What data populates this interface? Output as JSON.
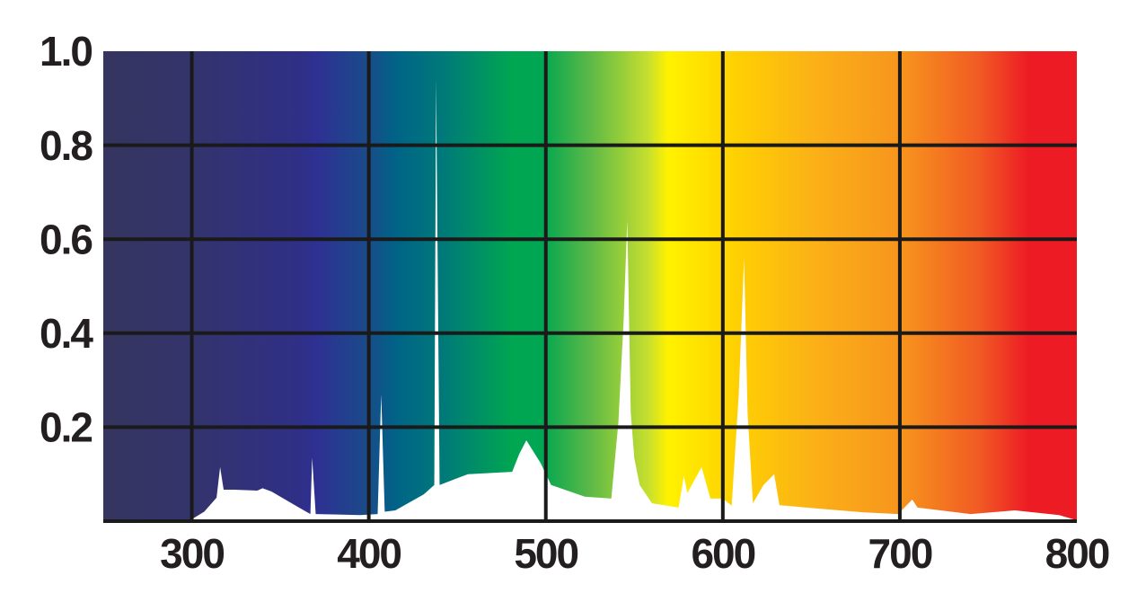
{
  "chart_data": {
    "type": "area",
    "color": "#ffffff",
    "grid": true,
    "xlim": [
      250,
      800
    ],
    "ylim": [
      0,
      1
    ],
    "xticks": [
      300,
      400,
      500,
      600,
      700,
      800
    ],
    "yticks": [
      0.2,
      0.4,
      0.6,
      0.8,
      {
        "value": 1,
        "label": "1.0"
      }
    ],
    "x": [
      300,
      307,
      314,
      316,
      318,
      324,
      337,
      340,
      345,
      360,
      367,
      368,
      370,
      395,
      405,
      407,
      409,
      415,
      431,
      437,
      438,
      440,
      456,
      481,
      485,
      489,
      497,
      503,
      522,
      537,
      541,
      544,
      546,
      548,
      550,
      553,
      560,
      575,
      578,
      580,
      588,
      593,
      600,
      605,
      609,
      612,
      614,
      617,
      623,
      629,
      632,
      653,
      679,
      699,
      707,
      710,
      740,
      765,
      790,
      798
    ],
    "values": [
      0.004,
      0.02,
      0.05,
      0.115,
      0.067,
      0.067,
      0.065,
      0.07,
      0.063,
      0.03,
      0.015,
      0.135,
      0.015,
      0.013,
      0.015,
      0.27,
      0.02,
      0.023,
      0.057,
      0.077,
      0.94,
      0.077,
      0.1,
      0.105,
      0.143,
      0.172,
      0.124,
      0.077,
      0.052,
      0.048,
      0.21,
      0.43,
      0.64,
      0.23,
      0.134,
      0.077,
      0.038,
      0.029,
      0.096,
      0.06,
      0.115,
      0.048,
      0.048,
      0.033,
      0.27,
      0.56,
      0.23,
      0.038,
      0.077,
      0.1,
      0.034,
      0.027,
      0.019,
      0.015,
      0.046,
      0.029,
      0.015,
      0.023,
      0.013,
      0.004
    ]
  }
}
